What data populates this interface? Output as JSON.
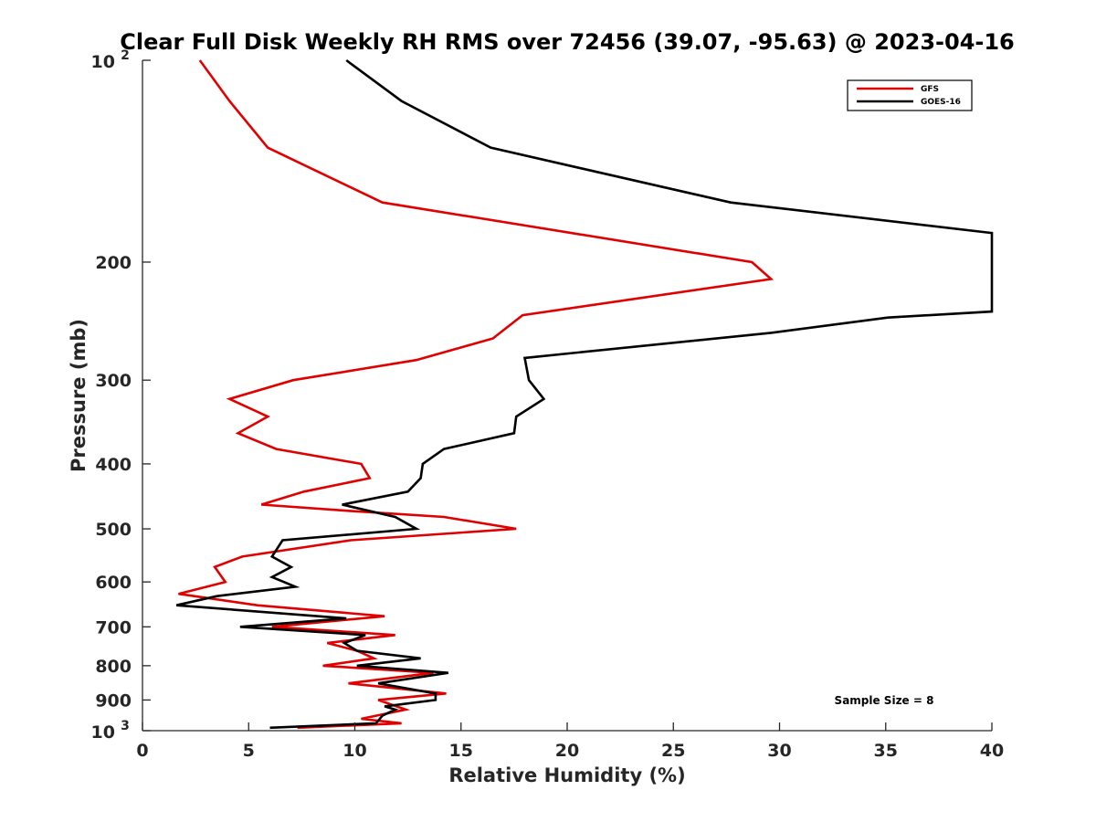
{
  "chart_data": {
    "type": "line",
    "title": "Clear Full Disk Weekly RH RMS over 72456 (39.07, -95.63) @ 2023-04-16",
    "xlabel": "Relative Humidity (%)",
    "ylabel": "Pressure (mb)",
    "xlim": [
      0,
      40
    ],
    "ylim": [
      100,
      1000
    ],
    "yscale": "log",
    "y_reversed": true,
    "grid": false,
    "legend_position": "top-right",
    "x_ticks": [
      0,
      5,
      10,
      15,
      20,
      25,
      30,
      35,
      40
    ],
    "x_tick_labels": [
      "0",
      "5",
      "10",
      "15",
      "20",
      "25",
      "30",
      "35",
      "40"
    ],
    "y_ticks": [
      200,
      300,
      400,
      500,
      600,
      700,
      800,
      900
    ],
    "y_tick_labels": [
      "200",
      "300",
      "400",
      "500",
      "600",
      "700",
      "800",
      "900"
    ],
    "y_decade_labels": [
      {
        "value": 100,
        "base": "10",
        "exp": "2"
      },
      {
        "value": 1000,
        "base": "10",
        "exp": "3"
      }
    ],
    "annotation": "Sample Size = 8",
    "series": [
      {
        "name": "GFS",
        "color": "#e00000",
        "points": [
          [
            2.7,
            100
          ],
          [
            4.1,
            115
          ],
          [
            5.9,
            135
          ],
          [
            11.3,
            163
          ],
          [
            28.7,
            200
          ],
          [
            29.6,
            212
          ],
          [
            17.9,
            240
          ],
          [
            16.5,
            260
          ],
          [
            12.9,
            280
          ],
          [
            7.1,
            300
          ],
          [
            4.1,
            320
          ],
          [
            5.9,
            340
          ],
          [
            4.5,
            360
          ],
          [
            6.3,
            380
          ],
          [
            10.3,
            400
          ],
          [
            10.7,
            420
          ],
          [
            7.6,
            440
          ],
          [
            5.6,
            460
          ],
          [
            9.7,
            470
          ],
          [
            14.2,
            480
          ],
          [
            17.6,
            500
          ],
          [
            9.8,
            520
          ],
          [
            4.7,
            550
          ],
          [
            3.4,
            570
          ],
          [
            3.9,
            600
          ],
          [
            1.7,
            625
          ],
          [
            5.4,
            650
          ],
          [
            11.4,
            675
          ],
          [
            6.1,
            700
          ],
          [
            11.9,
            720
          ],
          [
            8.7,
            740
          ],
          [
            10.1,
            760
          ],
          [
            10.9,
            780
          ],
          [
            8.5,
            800
          ],
          [
            13.7,
            820
          ],
          [
            9.7,
            850
          ],
          [
            14.3,
            880
          ],
          [
            11.1,
            900
          ],
          [
            12.4,
            930
          ],
          [
            10.3,
            960
          ],
          [
            12.2,
            975
          ],
          [
            7.3,
            990
          ]
        ]
      },
      {
        "name": "GOES-16",
        "color": "#000000",
        "points": [
          [
            9.6,
            100
          ],
          [
            12.2,
            115
          ],
          [
            16.4,
            135
          ],
          [
            27.7,
            163
          ],
          [
            40.0,
            181
          ],
          [
            40.0,
            237
          ],
          [
            35.1,
            242
          ],
          [
            29.6,
            255
          ],
          [
            18.0,
            278
          ],
          [
            18.2,
            300
          ],
          [
            18.9,
            320
          ],
          [
            17.6,
            340
          ],
          [
            17.5,
            360
          ],
          [
            14.2,
            380
          ],
          [
            13.2,
            400
          ],
          [
            13.1,
            420
          ],
          [
            12.5,
            440
          ],
          [
            9.4,
            460
          ],
          [
            11.9,
            480
          ],
          [
            12.9,
            500
          ],
          [
            6.6,
            520
          ],
          [
            6.1,
            550
          ],
          [
            7.0,
            570
          ],
          [
            6.1,
            590
          ],
          [
            7.2,
            610
          ],
          [
            3.5,
            630
          ],
          [
            1.6,
            650
          ],
          [
            9.6,
            680
          ],
          [
            4.6,
            700
          ],
          [
            10.5,
            720
          ],
          [
            9.5,
            740
          ],
          [
            10.1,
            760
          ],
          [
            13.1,
            780
          ],
          [
            10.1,
            800
          ],
          [
            14.4,
            820
          ],
          [
            11.1,
            850
          ],
          [
            13.8,
            880
          ],
          [
            13.8,
            900
          ],
          [
            11.4,
            920
          ],
          [
            11.9,
            930
          ],
          [
            11.3,
            950
          ],
          [
            11.0,
            975
          ],
          [
            6.0,
            990
          ]
        ]
      }
    ]
  }
}
